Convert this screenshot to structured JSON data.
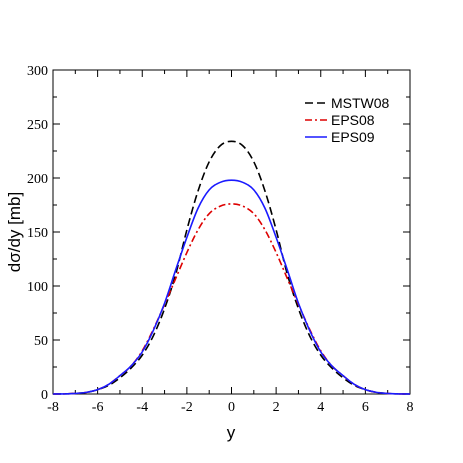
{
  "chart_data": {
    "type": "line",
    "xlabel": "y",
    "ylabel": "dσ/dy [mb]",
    "xlim": [
      -8,
      8
    ],
    "ylim": [
      0,
      300
    ],
    "xticks": [
      -8,
      -6,
      -4,
      -2,
      0,
      2,
      4,
      6,
      8
    ],
    "yticks": [
      0,
      50,
      100,
      150,
      200,
      250,
      300
    ],
    "grid": false,
    "legend_position": "top-right",
    "x": [
      -8,
      -7.5,
      -7,
      -6.5,
      -6,
      -5.5,
      -5,
      -4.5,
      -4,
      -3.5,
      -3,
      -2.5,
      -2,
      -1.5,
      -1,
      -0.5,
      0,
      0.5,
      1,
      1.5,
      2,
      2.5,
      3,
      3.5,
      4,
      4.5,
      5,
      5.5,
      6,
      6.5,
      7,
      7.5,
      8
    ],
    "series": [
      {
        "name": "MSTW08",
        "color": "#000000",
        "dash": "dashed",
        "values": [
          0,
          0.1,
          0.5,
          1.5,
          4,
          8,
          15,
          24,
          36,
          54,
          79,
          111,
          152,
          188,
          215,
          230,
          234,
          230,
          215,
          188,
          152,
          111,
          79,
          54,
          36,
          24,
          15,
          8,
          4,
          1.5,
          0.5,
          0.1,
          0
        ]
      },
      {
        "name": "EPS08",
        "color": "#dd0000",
        "dash": "dashdot",
        "values": [
          0,
          0.1,
          0.5,
          1.5,
          4,
          9,
          17,
          26,
          40,
          60,
          83,
          107,
          131,
          152,
          167,
          174,
          176,
          174,
          167,
          152,
          131,
          107,
          83,
          60,
          40,
          26,
          17,
          9,
          4,
          1.5,
          0.5,
          0.1,
          0
        ]
      },
      {
        "name": "EPS09",
        "color": "#1a1aff",
        "dash": "solid",
        "values": [
          0,
          0.1,
          0.5,
          1.5,
          4,
          9,
          17,
          26,
          39,
          59,
          84,
          115,
          145,
          172,
          189,
          196,
          198,
          196,
          189,
          172,
          145,
          115,
          84,
          59,
          39,
          26,
          17,
          9,
          4,
          1.5,
          0.5,
          0.1,
          0
        ]
      }
    ]
  }
}
